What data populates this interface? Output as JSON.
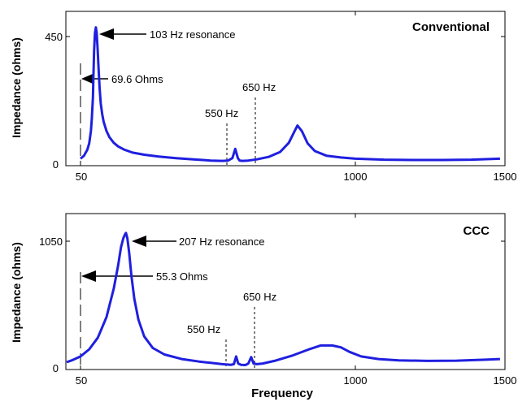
{
  "chart_data": [
    {
      "type": "line",
      "title": "Conventional",
      "ylabel": "Impedance (ohms)",
      "xlabel": "",
      "xlim": [
        50,
        1500
      ],
      "ylim": [
        0,
        500
      ],
      "x_ticks": [
        "50",
        "1000",
        "1500"
      ],
      "y_ticks": [
        "0",
        "450"
      ],
      "color": "#1f1fe0",
      "series": [
        {
          "x": [
            50,
            62,
            74,
            80,
            86,
            89,
            93,
            95,
            97,
            100,
            103,
            106,
            109,
            112,
            116,
            120,
            125,
            130,
            140,
            150,
            165,
            180,
            200,
            230,
            270,
            320,
            380,
            440,
            500,
            540,
            560,
            575,
            585,
            594,
            600,
            610,
            630,
            660,
            700,
            740,
            770,
            790,
            800,
            815,
            835,
            860,
            900,
            950,
            1000,
            1100,
            1200,
            1300,
            1400,
            1500
          ],
          "y": [
            20,
            30,
            50,
            70,
            110,
            150,
            220,
            300,
            370,
            430,
            448,
            430,
            380,
            320,
            250,
            200,
            165,
            140,
            110,
            90,
            72,
            60,
            50,
            40,
            33,
            27,
            22,
            18,
            14,
            13,
            14,
            22,
            52,
            22,
            14,
            13,
            14,
            18,
            26,
            42,
            72,
            110,
            128,
            110,
            70,
            45,
            30,
            24,
            20,
            17,
            16,
            16,
            17,
            20
          ]
        }
      ],
      "annotations": [
        "103 Hz resonance",
        "69.6 Ohms",
        "550 Hz",
        "650 Hz"
      ]
    },
    {
      "type": "line",
      "title": "CCC",
      "ylabel": "Impedance (ohms)",
      "xlabel": "Frequency",
      "xlim": [
        50,
        1500
      ],
      "ylim": [
        0,
        1200
      ],
      "x_ticks": [
        "50",
        "1000",
        "1500"
      ],
      "y_ticks": [
        "0",
        "1050"
      ],
      "color": "#1f1fe0",
      "series": [
        {
          "x": [
            0,
            20,
            50,
            80,
            110,
            140,
            165,
            180,
            190,
            198,
            204,
            207,
            212,
            218,
            226,
            236,
            250,
            270,
            300,
            340,
            400,
            460,
            500,
            540,
            570,
            580,
            588,
            595,
            605,
            620,
            630,
            640,
            648,
            660,
            680,
            720,
            780,
            840,
            880,
            920,
            950,
            980,
            1020,
            1080,
            1150,
            1250,
            1350,
            1450,
            1500
          ],
          "y": [
            50,
            65,
            95,
            150,
            240,
            400,
            620,
            800,
            940,
            1010,
            1040,
            1050,
            1010,
            900,
            720,
            540,
            380,
            250,
            160,
            110,
            75,
            55,
            45,
            35,
            30,
            35,
            95,
            40,
            30,
            28,
            40,
            90,
            40,
            35,
            40,
            60,
            100,
            150,
            180,
            180,
            165,
            130,
            95,
            75,
            65,
            60,
            62,
            70,
            75
          ]
        }
      ],
      "annotations": [
        "207 Hz resonance",
        "55.3 Ohms",
        "550 Hz",
        "650 Hz"
      ]
    }
  ]
}
